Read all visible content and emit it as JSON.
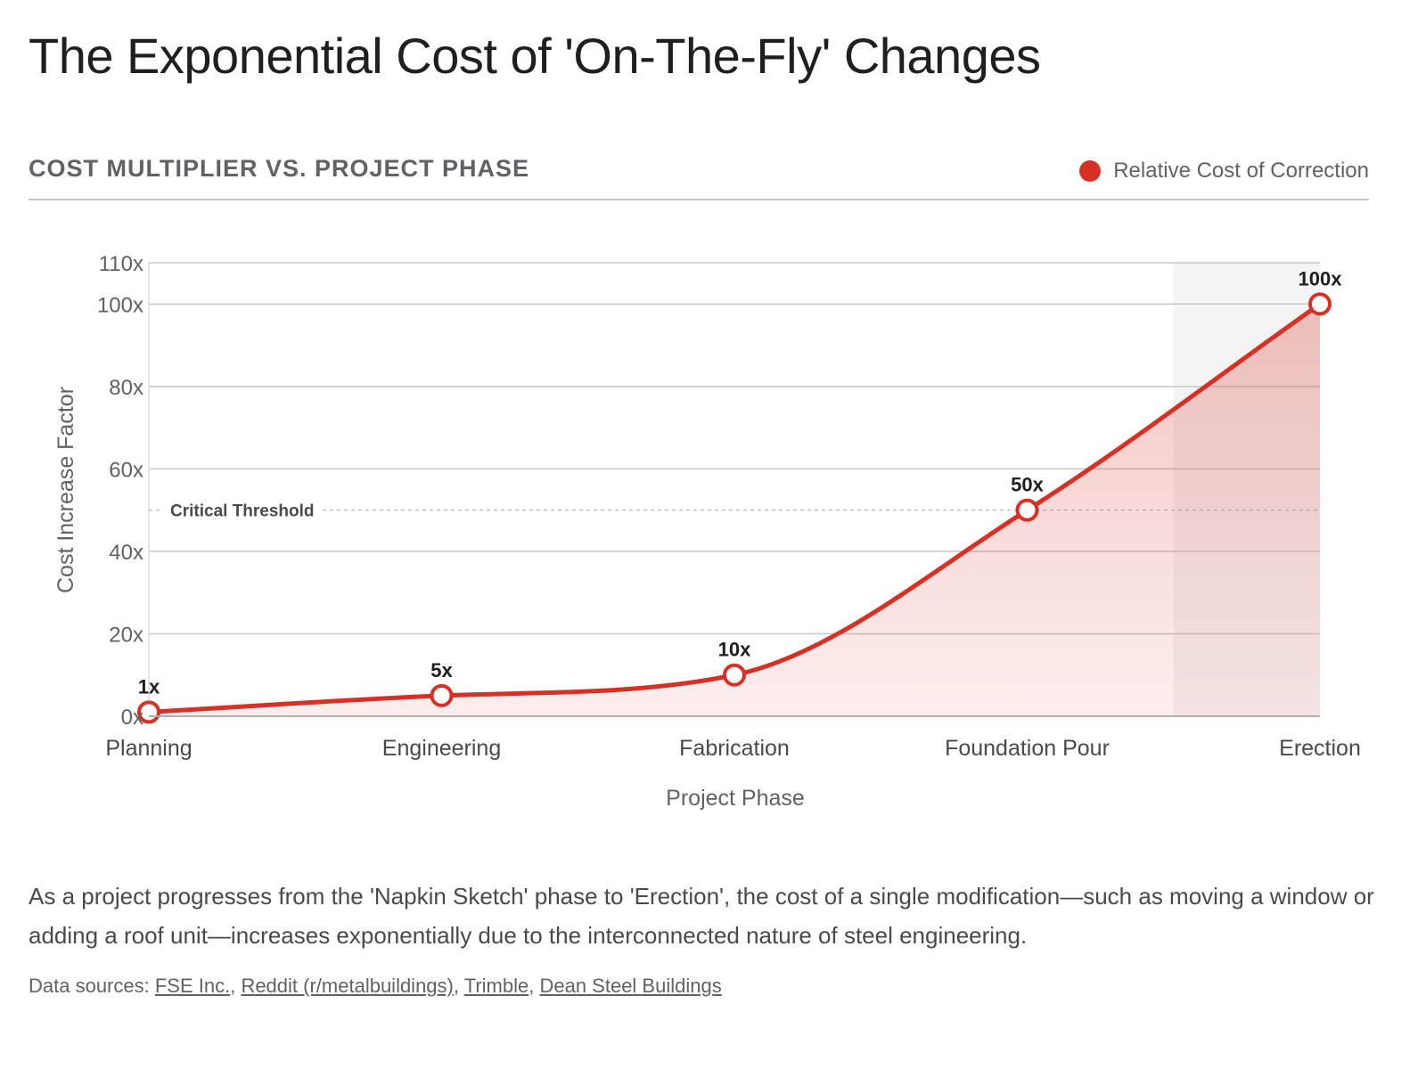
{
  "page": {
    "title": "The Exponential Cost of 'On-The-Fly' Changes",
    "subtitle": "COST MULTIPLIER VS. PROJECT PHASE",
    "description": "As a project progresses from the 'Napkin Sketch' phase to 'Erection', the cost of a single modification—such as moving a window or adding a roof unit—increases exponentially due to the interconnected nature of steel engineering.",
    "sources_label": "Data sources: ",
    "sources": [
      "FSE Inc.",
      "Reddit (r/metalbuildings)",
      "Trimble",
      "Dean Steel Buildings"
    ],
    "sources_separators": [
      ", ",
      ", ",
      ", ",
      ""
    ]
  },
  "colors": {
    "accent": "#d93025",
    "grid": "#c8c8c8",
    "text_muted": "#5f6368",
    "shade": "#f4f4f4"
  },
  "chart_data": {
    "type": "line",
    "title": "COST MULTIPLIER VS. PROJECT PHASE",
    "xlabel": "Project Phase",
    "ylabel": "Cost Increase Factor",
    "categories": [
      "Planning",
      "Engineering",
      "Fabrication",
      "Foundation Pour",
      "Erection"
    ],
    "series": [
      {
        "name": "Relative Cost of Correction",
        "values": [
          1,
          5,
          10,
          50,
          100
        ],
        "labels": [
          "1x",
          "5x",
          "10x",
          "50x",
          "100x"
        ],
        "color": "#d93025",
        "fill": "area-gradient"
      }
    ],
    "ylim": [
      0,
      110
    ],
    "yticks": [
      0,
      20,
      40,
      60,
      80,
      100,
      110
    ],
    "ytick_labels": [
      "0x",
      "20x",
      "40x",
      "60x",
      "80x",
      "100x",
      "110x"
    ],
    "grid": true,
    "legend": {
      "position": "top-right",
      "entries": [
        "Relative Cost of Correction"
      ]
    },
    "annotations": [
      {
        "type": "hline",
        "y": 50,
        "style": "dashed",
        "label": "Critical Threshold"
      },
      {
        "type": "shaded-band",
        "x_from": 3.5,
        "x_to": 4,
        "note": "highlighted Erection phase"
      }
    ]
  }
}
